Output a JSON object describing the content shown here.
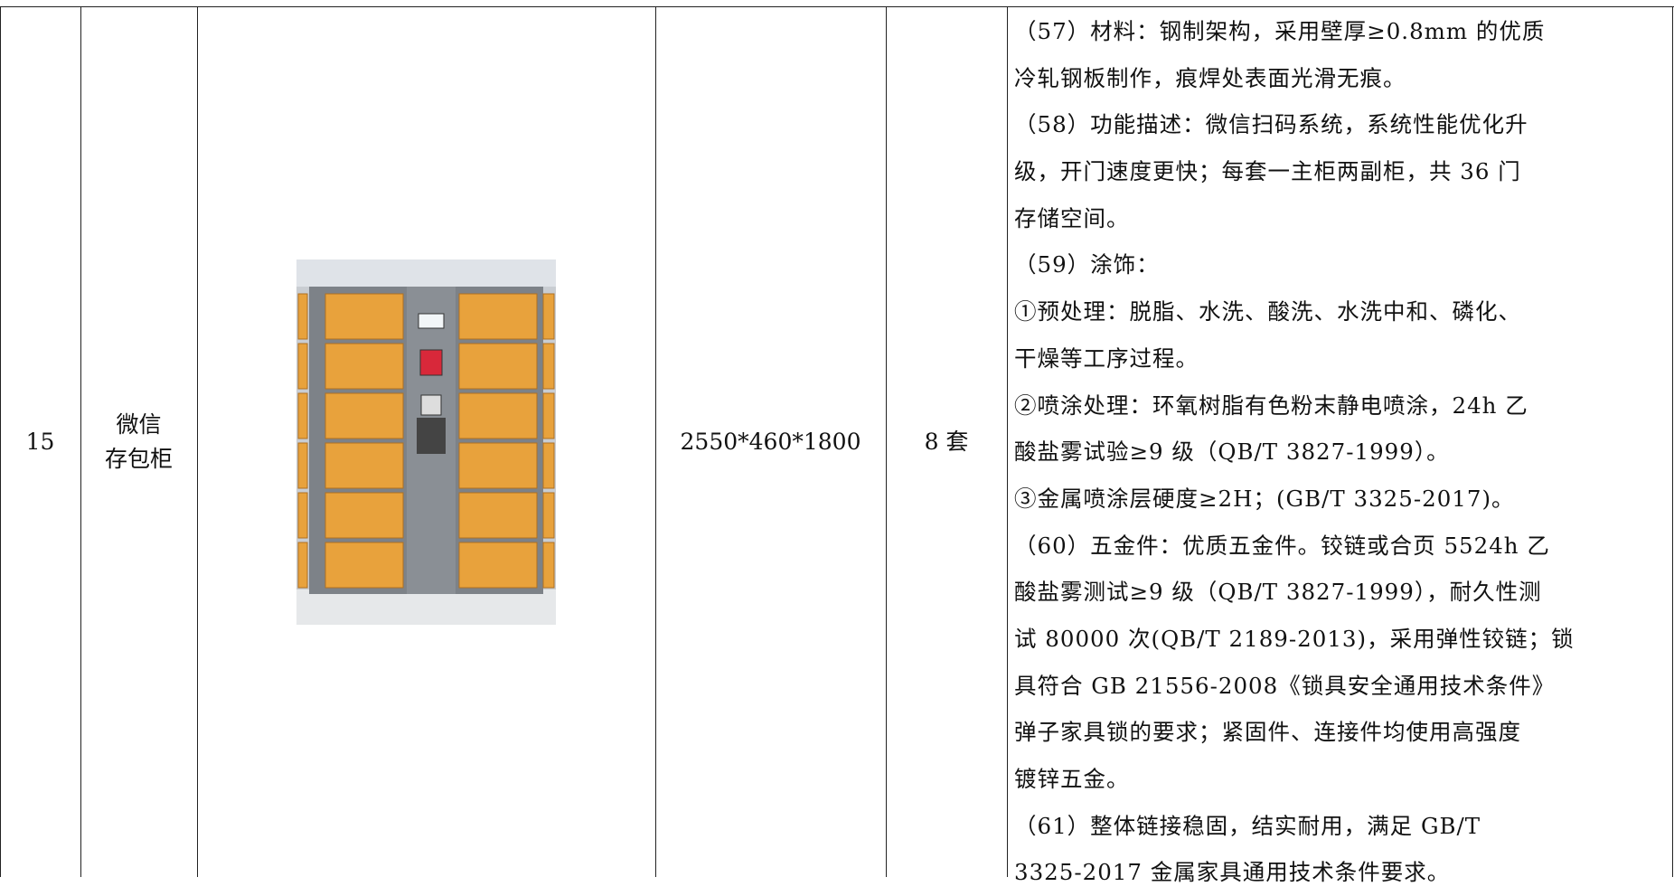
{
  "table": {
    "rows": [
      {
        "index": "15",
        "name": [
          "微信",
          "存包柜"
        ],
        "size": "2550*460*1800",
        "quantity": "8 套",
        "description": [
          "（57）材料：钢制架构，采用壁厚≥0.8mm 的优质",
          "冷轧钢板制作，痕焊处表面光滑无痕。",
          "（58）功能描述：微信扫码系统，系统性能优化升",
          "级，开门速度更快；每套一主柜两副柜，共 36 门",
          "存储空间。",
          "（59）涂饰：",
          "①预处理：脱脂、水洗、酸洗、水洗中和、磷化、",
          "干燥等工序过程。",
          "②喷涂处理：环氧树脂有色粉末静电喷涂，24h 乙",
          "酸盐雾试验≥9 级（QB/T 3827-1999）。",
          "③金属喷涂层硬度≥2H；(GB/T 3325-2017)。",
          "（60）五金件：优质五金件。铰链或合页 5524h 乙",
          "酸盐雾测试≥9 级（QB/T 3827-1999），耐久性测",
          "试 80000 次(QB/T 2189-2013)，采用弹性铰链；锁",
          "具符合 GB 21556-2008《锁具安全通用技术条件》",
          "弹子家具锁的要求；紧固件、连接件均使用高强度",
          "镀锌五金。",
          "（61）整体链接稳固，结实耐用，满足 GB/T",
          "3325-2017 金属家具通用技术条件要求。"
        ]
      }
    ]
  }
}
